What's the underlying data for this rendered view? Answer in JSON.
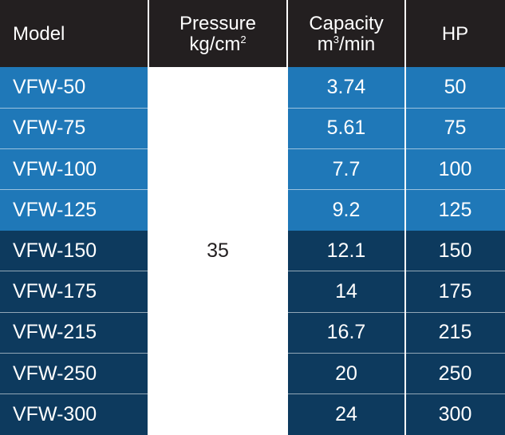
{
  "headers": {
    "model": "Model",
    "pressure_line1": "Pressure",
    "pressure_line2_base": "kg/cm",
    "pressure_line2_sup": "2",
    "capacity_line1": "Capacity",
    "capacity_line2_base": "m",
    "capacity_line2_sup": "3",
    "capacity_line2_rest": "/min",
    "hp": "HP"
  },
  "pressure_value": "35",
  "rows": [
    {
      "model": "VFW-50",
      "capacity": "3.74",
      "hp": "50"
    },
    {
      "model": "VFW-75",
      "capacity": "5.61",
      "hp": "75"
    },
    {
      "model": "VFW-100",
      "capacity": "7.7",
      "hp": "100"
    },
    {
      "model": "VFW-125",
      "capacity": "9.2",
      "hp": "125"
    },
    {
      "model": "VFW-150",
      "capacity": "12.1",
      "hp": "150"
    },
    {
      "model": "VFW-175",
      "capacity": "14",
      "hp": "175"
    },
    {
      "model": "VFW-215",
      "capacity": "16.7",
      "hp": "215"
    },
    {
      "model": "VFW-250",
      "capacity": "20",
      "hp": "250"
    },
    {
      "model": "VFW-300",
      "capacity": "24",
      "hp": "300"
    }
  ],
  "colors": {
    "header_bg": "#231f20",
    "light_row_bg": "#1f78b8",
    "dark_row_bg": "#0d3a5e",
    "text_light": "#ffffff",
    "text_dark": "#231f20"
  }
}
